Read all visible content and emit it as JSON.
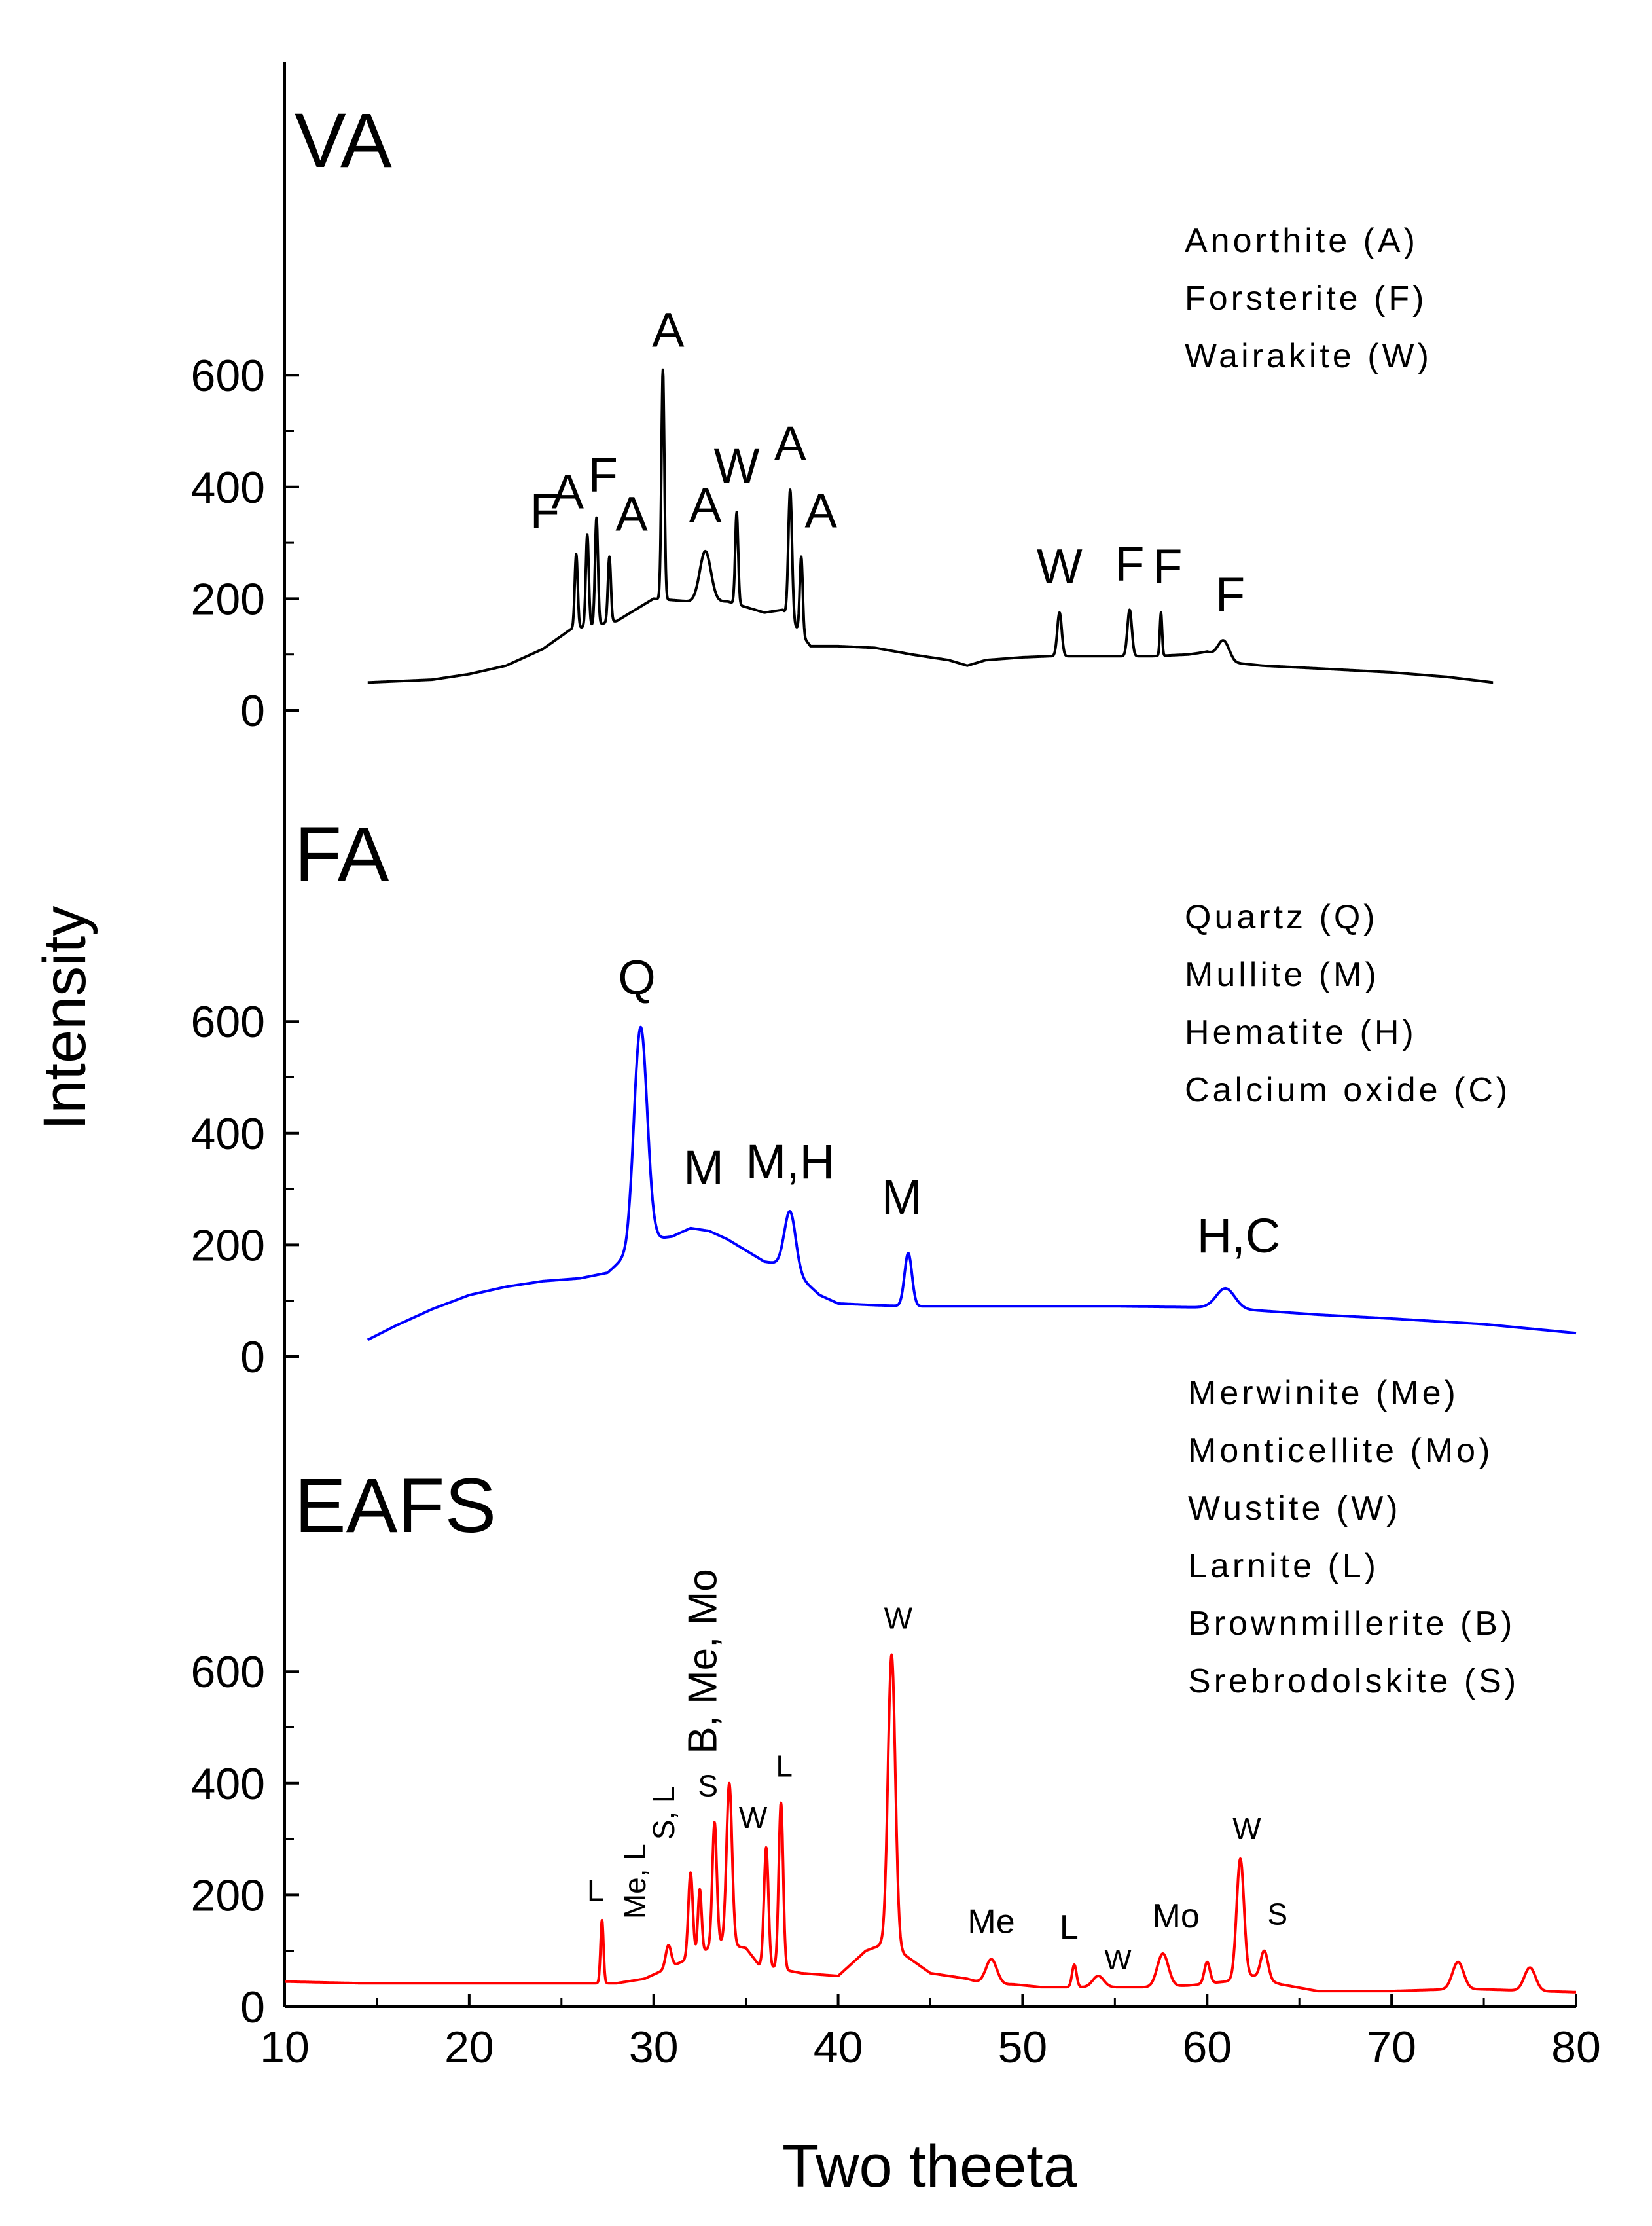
{
  "chart_data": {
    "type": "line",
    "xlabel": "Two theeta",
    "ylabel": "Intensity",
    "xlim": [
      10,
      80
    ],
    "x_ticks": [
      "10",
      "20",
      "30",
      "40",
      "50",
      "60",
      "70",
      "80"
    ],
    "ylim": [
      0,
      700
    ],
    "y_ticks": [
      "0",
      "200",
      "400",
      "600"
    ],
    "panels": [
      {
        "title": "VA",
        "color": "#000000",
        "legend": [
          "Anorthite (A)",
          "Forsterite (F)",
          "Wairakite (W)"
        ],
        "baseline": [
          [
            14.5,
            50
          ],
          [
            18,
            55
          ],
          [
            20,
            65
          ],
          [
            22,
            80
          ],
          [
            24,
            110
          ],
          [
            25.5,
            145
          ],
          [
            28,
            160
          ],
          [
            30,
            200
          ],
          [
            32,
            195
          ],
          [
            34,
            195
          ],
          [
            35,
            185
          ],
          [
            36,
            175
          ],
          [
            37,
            180
          ],
          [
            38.5,
            115
          ],
          [
            40,
            115
          ],
          [
            42,
            112
          ],
          [
            44,
            100
          ],
          [
            46,
            90
          ],
          [
            47,
            80
          ],
          [
            48,
            90
          ],
          [
            50,
            95
          ],
          [
            51.5,
            97
          ],
          [
            53,
            97
          ],
          [
            55,
            97
          ],
          [
            57,
            97
          ],
          [
            59,
            100
          ],
          [
            60,
            105
          ],
          [
            61.5,
            85
          ],
          [
            63,
            80
          ],
          [
            66,
            75
          ],
          [
            70,
            68
          ],
          [
            73,
            60
          ],
          [
            75.5,
            50
          ]
        ],
        "peaks": [
          {
            "x": 25.8,
            "y": 280,
            "w": 0.08,
            "label": "F"
          },
          {
            "x": 26.4,
            "y": 315,
            "w": 0.08,
            "label": "A"
          },
          {
            "x": 26.9,
            "y": 345,
            "w": 0.08,
            "label": "F"
          },
          {
            "x": 27.6,
            "y": 275,
            "w": 0.08,
            "label": "A"
          },
          {
            "x": 30.5,
            "y": 610,
            "w": 0.08,
            "label": "A"
          },
          {
            "x": 32.8,
            "y": 285,
            "w": 0.3,
            "label": "A"
          },
          {
            "x": 34.5,
            "y": 355,
            "w": 0.08,
            "label": "W"
          },
          {
            "x": 37.4,
            "y": 395,
            "w": 0.1,
            "label": "A"
          },
          {
            "x": 38,
            "y": 275,
            "w": 0.08,
            "label": "A"
          },
          {
            "x": 52,
            "y": 175,
            "w": 0.12,
            "label": "W"
          },
          {
            "x": 55.8,
            "y": 180,
            "w": 0.12,
            "label": "F"
          },
          {
            "x": 57.5,
            "y": 175,
            "w": 0.06,
            "label": "F"
          },
          {
            "x": 60.9,
            "y": 125,
            "w": 0.3,
            "label": "F"
          }
        ]
      },
      {
        "title": "FA",
        "color": "#0000ff",
        "legend": [
          "Quartz (Q)",
          "Mullite (M)",
          "Hematite (H)",
          "Calcium oxide (C)"
        ],
        "baseline": [
          [
            14.5,
            30
          ],
          [
            16,
            55
          ],
          [
            18,
            85
          ],
          [
            20,
            110
          ],
          [
            22,
            125
          ],
          [
            24,
            135
          ],
          [
            26,
            140
          ],
          [
            27.5,
            150
          ],
          [
            28.5,
            180
          ],
          [
            29,
            215
          ],
          [
            30,
            210
          ],
          [
            31,
            215
          ],
          [
            32,
            230
          ],
          [
            33,
            225
          ],
          [
            34,
            210
          ],
          [
            35,
            190
          ],
          [
            36,
            170
          ],
          [
            37,
            165
          ],
          [
            38,
            140
          ],
          [
            39,
            110
          ],
          [
            40,
            95
          ],
          [
            42,
            92
          ],
          [
            44,
            90
          ],
          [
            46,
            90
          ],
          [
            50,
            90
          ],
          [
            55,
            90
          ],
          [
            60,
            88
          ],
          [
            63,
            82
          ],
          [
            66,
            75
          ],
          [
            70,
            68
          ],
          [
            75,
            58
          ],
          [
            80,
            42
          ]
        ],
        "peaks": [
          {
            "x": 29.3,
            "y": 590,
            "w": 0.35,
            "label": "Q"
          },
          {
            "x": 32,
            "y": 232,
            "w": 0,
            "label": "M"
          },
          {
            "x": 37.4,
            "y": 260,
            "w": 0.3,
            "label": "M,H"
          },
          {
            "x": 43.8,
            "y": 185,
            "w": 0.2,
            "label": "M"
          },
          {
            "x": 61,
            "y": 122,
            "w": 0.5,
            "label": "H,C"
          }
        ]
      },
      {
        "title": "EAFS",
        "color": "#ff0000",
        "legend": [
          "Merwinite (Me)",
          "Monticellite (Mo)",
          "Wustite (W)",
          "Larnite (L)",
          "Brownmillerite (B)",
          "Srebrodolskite (S)"
        ],
        "baseline": [
          [
            10,
            45
          ],
          [
            14,
            42
          ],
          [
            18,
            42
          ],
          [
            22,
            42
          ],
          [
            26,
            42
          ],
          [
            28,
            42
          ],
          [
            29.5,
            50
          ],
          [
            30.5,
            65
          ],
          [
            31.5,
            80
          ],
          [
            32.5,
            95
          ],
          [
            33.5,
            115
          ],
          [
            35,
            105
          ],
          [
            35.7,
            75
          ],
          [
            38,
            60
          ],
          [
            40,
            55
          ],
          [
            41.5,
            100
          ],
          [
            42.3,
            110
          ],
          [
            43.5,
            95
          ],
          [
            45,
            60
          ],
          [
            47,
            50
          ],
          [
            48,
            40
          ],
          [
            49.5,
            40
          ],
          [
            51,
            35
          ],
          [
            53,
            35
          ],
          [
            55,
            35
          ],
          [
            57,
            35
          ],
          [
            59,
            38
          ],
          [
            61,
            45
          ],
          [
            62.5,
            55
          ],
          [
            64,
            40
          ],
          [
            66,
            28
          ],
          [
            68,
            28
          ],
          [
            70,
            28
          ],
          [
            72,
            30
          ],
          [
            74,
            32
          ],
          [
            76,
            30
          ],
          [
            78,
            28
          ],
          [
            80,
            26
          ]
        ],
        "peaks": [
          {
            "x": 27.2,
            "y": 155,
            "w": 0.08,
            "label": "L"
          },
          {
            "x": 30.8,
            "y": 110,
            "w": 0.15,
            "label": "Me, L"
          },
          {
            "x": 32,
            "y": 240,
            "w": 0.12,
            "label": "S, L"
          },
          {
            "x": 32.5,
            "y": 210,
            "w": 0.1,
            "label": ""
          },
          {
            "x": 33.3,
            "y": 330,
            "w": 0.12,
            "label": "S"
          },
          {
            "x": 34.1,
            "y": 400,
            "w": 0.15,
            "label": "B, Me, Mo"
          },
          {
            "x": 36.1,
            "y": 285,
            "w": 0.12,
            "label": "W"
          },
          {
            "x": 36.9,
            "y": 365,
            "w": 0.12,
            "label": "L"
          },
          {
            "x": 42.9,
            "y": 630,
            "w": 0.2,
            "label": "W"
          },
          {
            "x": 48.3,
            "y": 85,
            "w": 0.3,
            "label": "Me"
          },
          {
            "x": 52.8,
            "y": 75,
            "w": 0.12,
            "label": "L"
          },
          {
            "x": 54.1,
            "y": 55,
            "w": 0.3,
            "label": "W"
          },
          {
            "x": 57.6,
            "y": 95,
            "w": 0.3,
            "label": "Mo"
          },
          {
            "x": 60,
            "y": 80,
            "w": 0.15,
            "label": ""
          },
          {
            "x": 61.8,
            "y": 265,
            "w": 0.2,
            "label": "W"
          },
          {
            "x": 63.1,
            "y": 100,
            "w": 0.2,
            "label": "S"
          },
          {
            "x": 73.6,
            "y": 80,
            "w": 0.3,
            "label": ""
          },
          {
            "x": 77.5,
            "y": 70,
            "w": 0.3,
            "label": ""
          }
        ]
      }
    ]
  }
}
